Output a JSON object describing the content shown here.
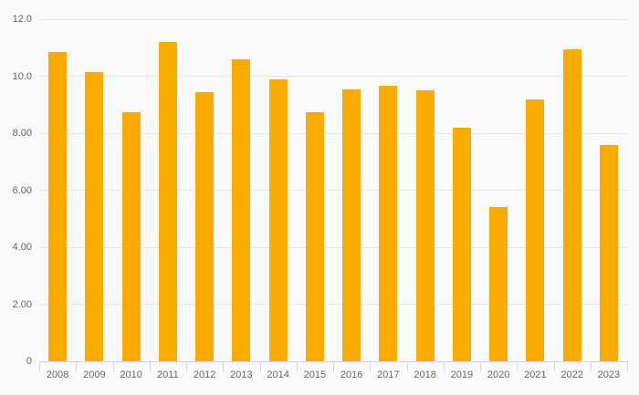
{
  "chart_data": {
    "type": "bar",
    "title": "",
    "xlabel": "",
    "ylabel": "",
    "categories": [
      "2008",
      "2009",
      "2010",
      "2011",
      "2012",
      "2013",
      "2014",
      "2015",
      "2016",
      "2017",
      "2018",
      "2019",
      "2020",
      "2021",
      "2022",
      "2023"
    ],
    "values": [
      10.85,
      10.15,
      8.75,
      11.2,
      9.45,
      10.6,
      9.9,
      8.75,
      9.55,
      9.65,
      9.5,
      8.2,
      5.4,
      9.2,
      10.95,
      7.6
    ],
    "ylim": [
      0,
      12
    ],
    "yticks": [
      {
        "value": 0,
        "label": "0"
      },
      {
        "value": 2,
        "label": "2.00"
      },
      {
        "value": 4,
        "label": "4.00"
      },
      {
        "value": 6,
        "label": "6.00"
      },
      {
        "value": 8,
        "label": "8.00"
      },
      {
        "value": 10,
        "label": "10.0"
      },
      {
        "value": 12,
        "label": "12.0"
      }
    ],
    "grid": true,
    "legend": false
  },
  "colors": {
    "bar": "#f9ab00",
    "background": "#fafafa",
    "gridline": "#e6e6e6",
    "axis": "#ccd6eb",
    "label": "#666666"
  }
}
